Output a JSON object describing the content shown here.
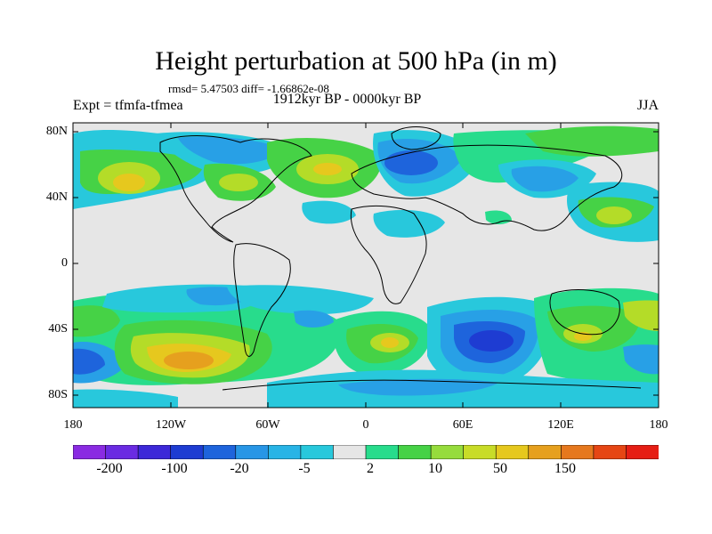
{
  "title": "Height perturbation at 500 hPa (in m)",
  "stats": "rmsd= 5.47503 diff= -1.66862e-08",
  "expt": "Expt = tfmfa-tfmea",
  "period": "1912kyr BP - 0000kyr BP",
  "season": "JJA",
  "lat_labels": [
    "80N",
    "40N",
    "0",
    "40S",
    "80S"
  ],
  "lon_labels": [
    "180",
    "120W",
    "60W",
    "0",
    "60E",
    "120E",
    "180"
  ],
  "colorbar": {
    "labels": [
      "-200",
      "-100",
      "-20",
      "-5",
      "2",
      "10",
      "50",
      "150"
    ],
    "colors": [
      "#8a2be2",
      "#6a2be2",
      "#3c28d8",
      "#1e3cd2",
      "#1e64dc",
      "#2896e6",
      "#28b4e6",
      "#28c8dc",
      "#e6e6e6",
      "#28dc8c",
      "#46d246",
      "#96dc3c",
      "#c8dc28",
      "#e6c81e",
      "#e6a01e",
      "#e6781e",
      "#e64614",
      "#e61e14"
    ]
  },
  "palette": {
    "ocean_bg": "#e6e6e6",
    "blue_light": "#28c8dc",
    "blue_mid": "#28a0e6",
    "blue_dark": "#1e64dc",
    "blue_core": "#1e3cd2",
    "green_light": "#28dc8c",
    "green": "#46d246",
    "yellow_green": "#b4dc28",
    "yellow": "#e6c81e",
    "orange": "#e6a01e"
  }
}
